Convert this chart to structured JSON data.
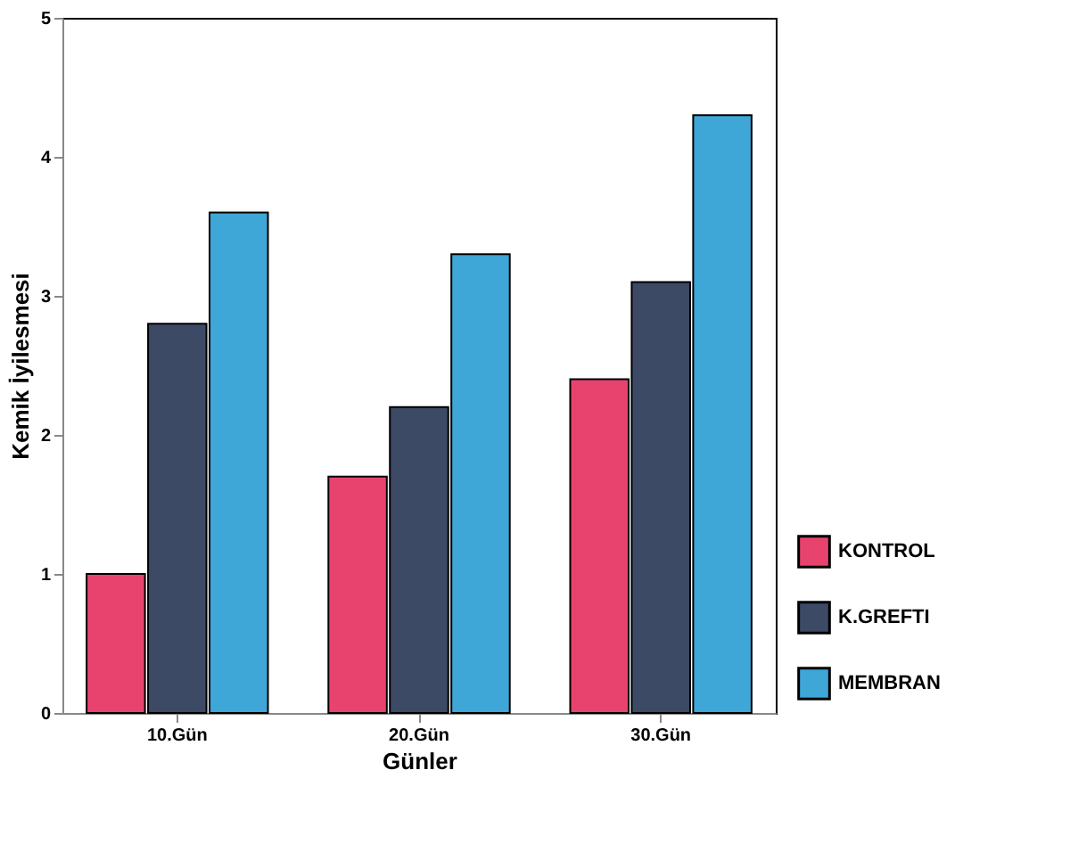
{
  "chart_data": {
    "type": "bar",
    "xlabel": "Günler",
    "ylabel": "Kemik İyilesmesi",
    "categories": [
      "10.Gün",
      "20.Gün",
      "30.Gün"
    ],
    "series": [
      {
        "name": "KONTROL",
        "color": "#e8436e",
        "values": [
          1.0,
          1.7,
          2.4
        ]
      },
      {
        "name": "K.GREFTI",
        "color": "#3d4a66",
        "values": [
          2.8,
          2.2,
          3.1
        ]
      },
      {
        "name": "MEMBRAN",
        "color": "#3fa6d8",
        "values": [
          3.6,
          3.3,
          4.3
        ]
      }
    ],
    "ylim": [
      0,
      5
    ],
    "yticks": [
      0,
      1,
      2,
      3,
      4,
      5
    ],
    "grid": false,
    "legend": "bottom right"
  }
}
